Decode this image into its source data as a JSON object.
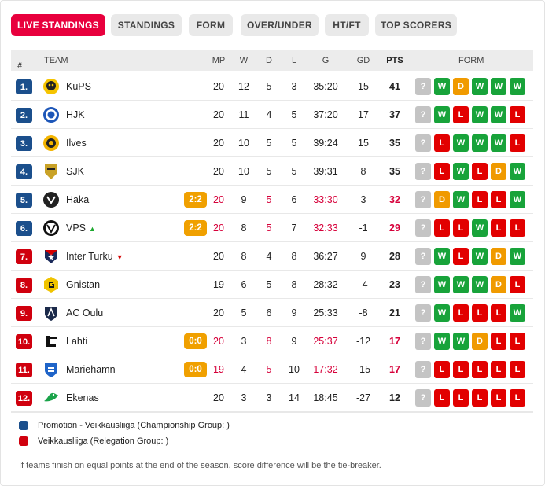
{
  "tabs": [
    {
      "label": "LIVE STANDINGS",
      "active": true
    },
    {
      "label": "STANDINGS",
      "active": false
    },
    {
      "label": "FORM",
      "active": false
    },
    {
      "label": "OVER/UNDER",
      "active": false
    },
    {
      "label": "HT/FT",
      "active": false
    },
    {
      "label": "TOP SCORERS",
      "active": false
    }
  ],
  "columns": {
    "rank": "#",
    "team": "TEAM",
    "mp": "MP",
    "w": "W",
    "d": "D",
    "l": "L",
    "g": "G",
    "gd": "GD",
    "pts": "PTS",
    "form": "FORM"
  },
  "colors": {
    "promotion": "#1b4f8c",
    "relegation": "#d0000e",
    "accent": "#e8003d",
    "win": "#18a33a",
    "draw": "#f09a00",
    "loss": "#e20000"
  },
  "rows": [
    {
      "rank": "1.",
      "zone": "promotion",
      "logo": "kups-logo",
      "team": "KuPS",
      "trend": "",
      "live": "",
      "mp": "20",
      "w": "12",
      "d": "5",
      "l": "3",
      "g": "35:20",
      "gd": "15",
      "pts": "41",
      "form": [
        "?",
        "W",
        "D",
        "W",
        "W",
        "W"
      ]
    },
    {
      "rank": "2.",
      "zone": "promotion",
      "logo": "hjk-logo",
      "team": "HJK",
      "trend": "",
      "live": "",
      "mp": "20",
      "w": "11",
      "d": "4",
      "l": "5",
      "g": "37:20",
      "gd": "17",
      "pts": "37",
      "form": [
        "?",
        "W",
        "L",
        "W",
        "W",
        "L"
      ]
    },
    {
      "rank": "3.",
      "zone": "promotion",
      "logo": "ilves-logo",
      "team": "Ilves",
      "trend": "",
      "live": "",
      "mp": "20",
      "w": "10",
      "d": "5",
      "l": "5",
      "g": "39:24",
      "gd": "15",
      "pts": "35",
      "form": [
        "?",
        "L",
        "W",
        "W",
        "W",
        "L"
      ]
    },
    {
      "rank": "4.",
      "zone": "promotion",
      "logo": "sjk-logo",
      "team": "SJK",
      "trend": "",
      "live": "",
      "mp": "20",
      "w": "10",
      "d": "5",
      "l": "5",
      "g": "39:31",
      "gd": "8",
      "pts": "35",
      "form": [
        "?",
        "L",
        "W",
        "L",
        "D",
        "W"
      ]
    },
    {
      "rank": "5.",
      "zone": "promotion",
      "logo": "haka-logo",
      "team": "Haka",
      "trend": "",
      "live": "2:2",
      "mp": "20",
      "w": "9",
      "d": "5",
      "l": "6",
      "g": "33:30",
      "gd": "3",
      "pts": "32",
      "form": [
        "?",
        "D",
        "W",
        "L",
        "L",
        "W"
      ]
    },
    {
      "rank": "6.",
      "zone": "promotion",
      "logo": "vps-logo",
      "team": "VPS",
      "trend": "up",
      "live": "2:2",
      "mp": "20",
      "w": "8",
      "d": "5",
      "l": "7",
      "g": "32:33",
      "gd": "-1",
      "pts": "29",
      "form": [
        "?",
        "L",
        "L",
        "W",
        "L",
        "L"
      ]
    },
    {
      "rank": "7.",
      "zone": "relegation",
      "logo": "inter-turku-logo",
      "team": "Inter Turku",
      "trend": "down",
      "live": "",
      "mp": "20",
      "w": "8",
      "d": "4",
      "l": "8",
      "g": "36:27",
      "gd": "9",
      "pts": "28",
      "form": [
        "?",
        "W",
        "L",
        "W",
        "D",
        "W"
      ]
    },
    {
      "rank": "8.",
      "zone": "relegation",
      "logo": "gnistan-logo",
      "team": "Gnistan",
      "trend": "",
      "live": "",
      "mp": "19",
      "w": "6",
      "d": "5",
      "l": "8",
      "g": "28:32",
      "gd": "-4",
      "pts": "23",
      "form": [
        "?",
        "W",
        "W",
        "W",
        "D",
        "L"
      ]
    },
    {
      "rank": "9.",
      "zone": "relegation",
      "logo": "ac-oulu-logo",
      "team": "AC Oulu",
      "trend": "",
      "live": "",
      "mp": "20",
      "w": "5",
      "d": "6",
      "l": "9",
      "g": "25:33",
      "gd": "-8",
      "pts": "21",
      "form": [
        "?",
        "W",
        "L",
        "L",
        "L",
        "W"
      ]
    },
    {
      "rank": "10.",
      "zone": "relegation",
      "logo": "lahti-logo",
      "team": "Lahti",
      "trend": "",
      "live": "0:0",
      "mp": "20",
      "w": "3",
      "d": "8",
      "l": "9",
      "g": "25:37",
      "gd": "-12",
      "pts": "17",
      "form": [
        "?",
        "W",
        "W",
        "D",
        "L",
        "L"
      ]
    },
    {
      "rank": "11.",
      "zone": "relegation",
      "logo": "mariehamn-logo",
      "team": "Mariehamn",
      "trend": "",
      "live": "0:0",
      "mp": "19",
      "w": "4",
      "d": "5",
      "l": "10",
      "g": "17:32",
      "gd": "-15",
      "pts": "17",
      "form": [
        "?",
        "L",
        "L",
        "L",
        "L",
        "L"
      ]
    },
    {
      "rank": "12.",
      "zone": "relegation",
      "logo": "ekenas-logo",
      "team": "Ekenas",
      "trend": "",
      "live": "",
      "mp": "20",
      "w": "3",
      "d": "3",
      "l": "14",
      "g": "18:45",
      "gd": "-27",
      "pts": "12",
      "form": [
        "?",
        "L",
        "L",
        "L",
        "L",
        "L"
      ]
    }
  ],
  "legend": [
    {
      "zone": "promotion",
      "label": "Promotion - Veikkausliiga (Championship Group: )"
    },
    {
      "zone": "relegation",
      "label": "Veikkausliiga (Relegation Group: )"
    }
  ],
  "note": "If teams finish on equal points at the end of the season, score difference will be the tie-breaker."
}
